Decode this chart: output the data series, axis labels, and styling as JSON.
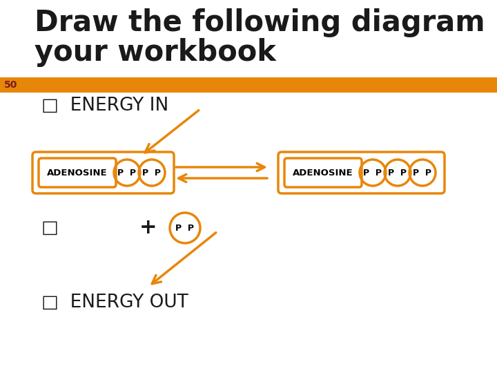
{
  "bg_color": "#ffffff",
  "orange": "#E8860A",
  "dark_red": "#7B1C1C",
  "title_line1": "Draw the following diagram in",
  "title_line2": "your workbook",
  "slide_number": "50",
  "energy_in": "□  ENERGY IN",
  "energy_out": "□  ENERGY OUT",
  "bullet": "□",
  "plus": "+",
  "adenosine": "ADENOSINE",
  "pp": "P  P",
  "title_fontsize": 30,
  "label_fontsize": 19,
  "mol_fontsize": 9.5,
  "pp_fontsize": 9
}
